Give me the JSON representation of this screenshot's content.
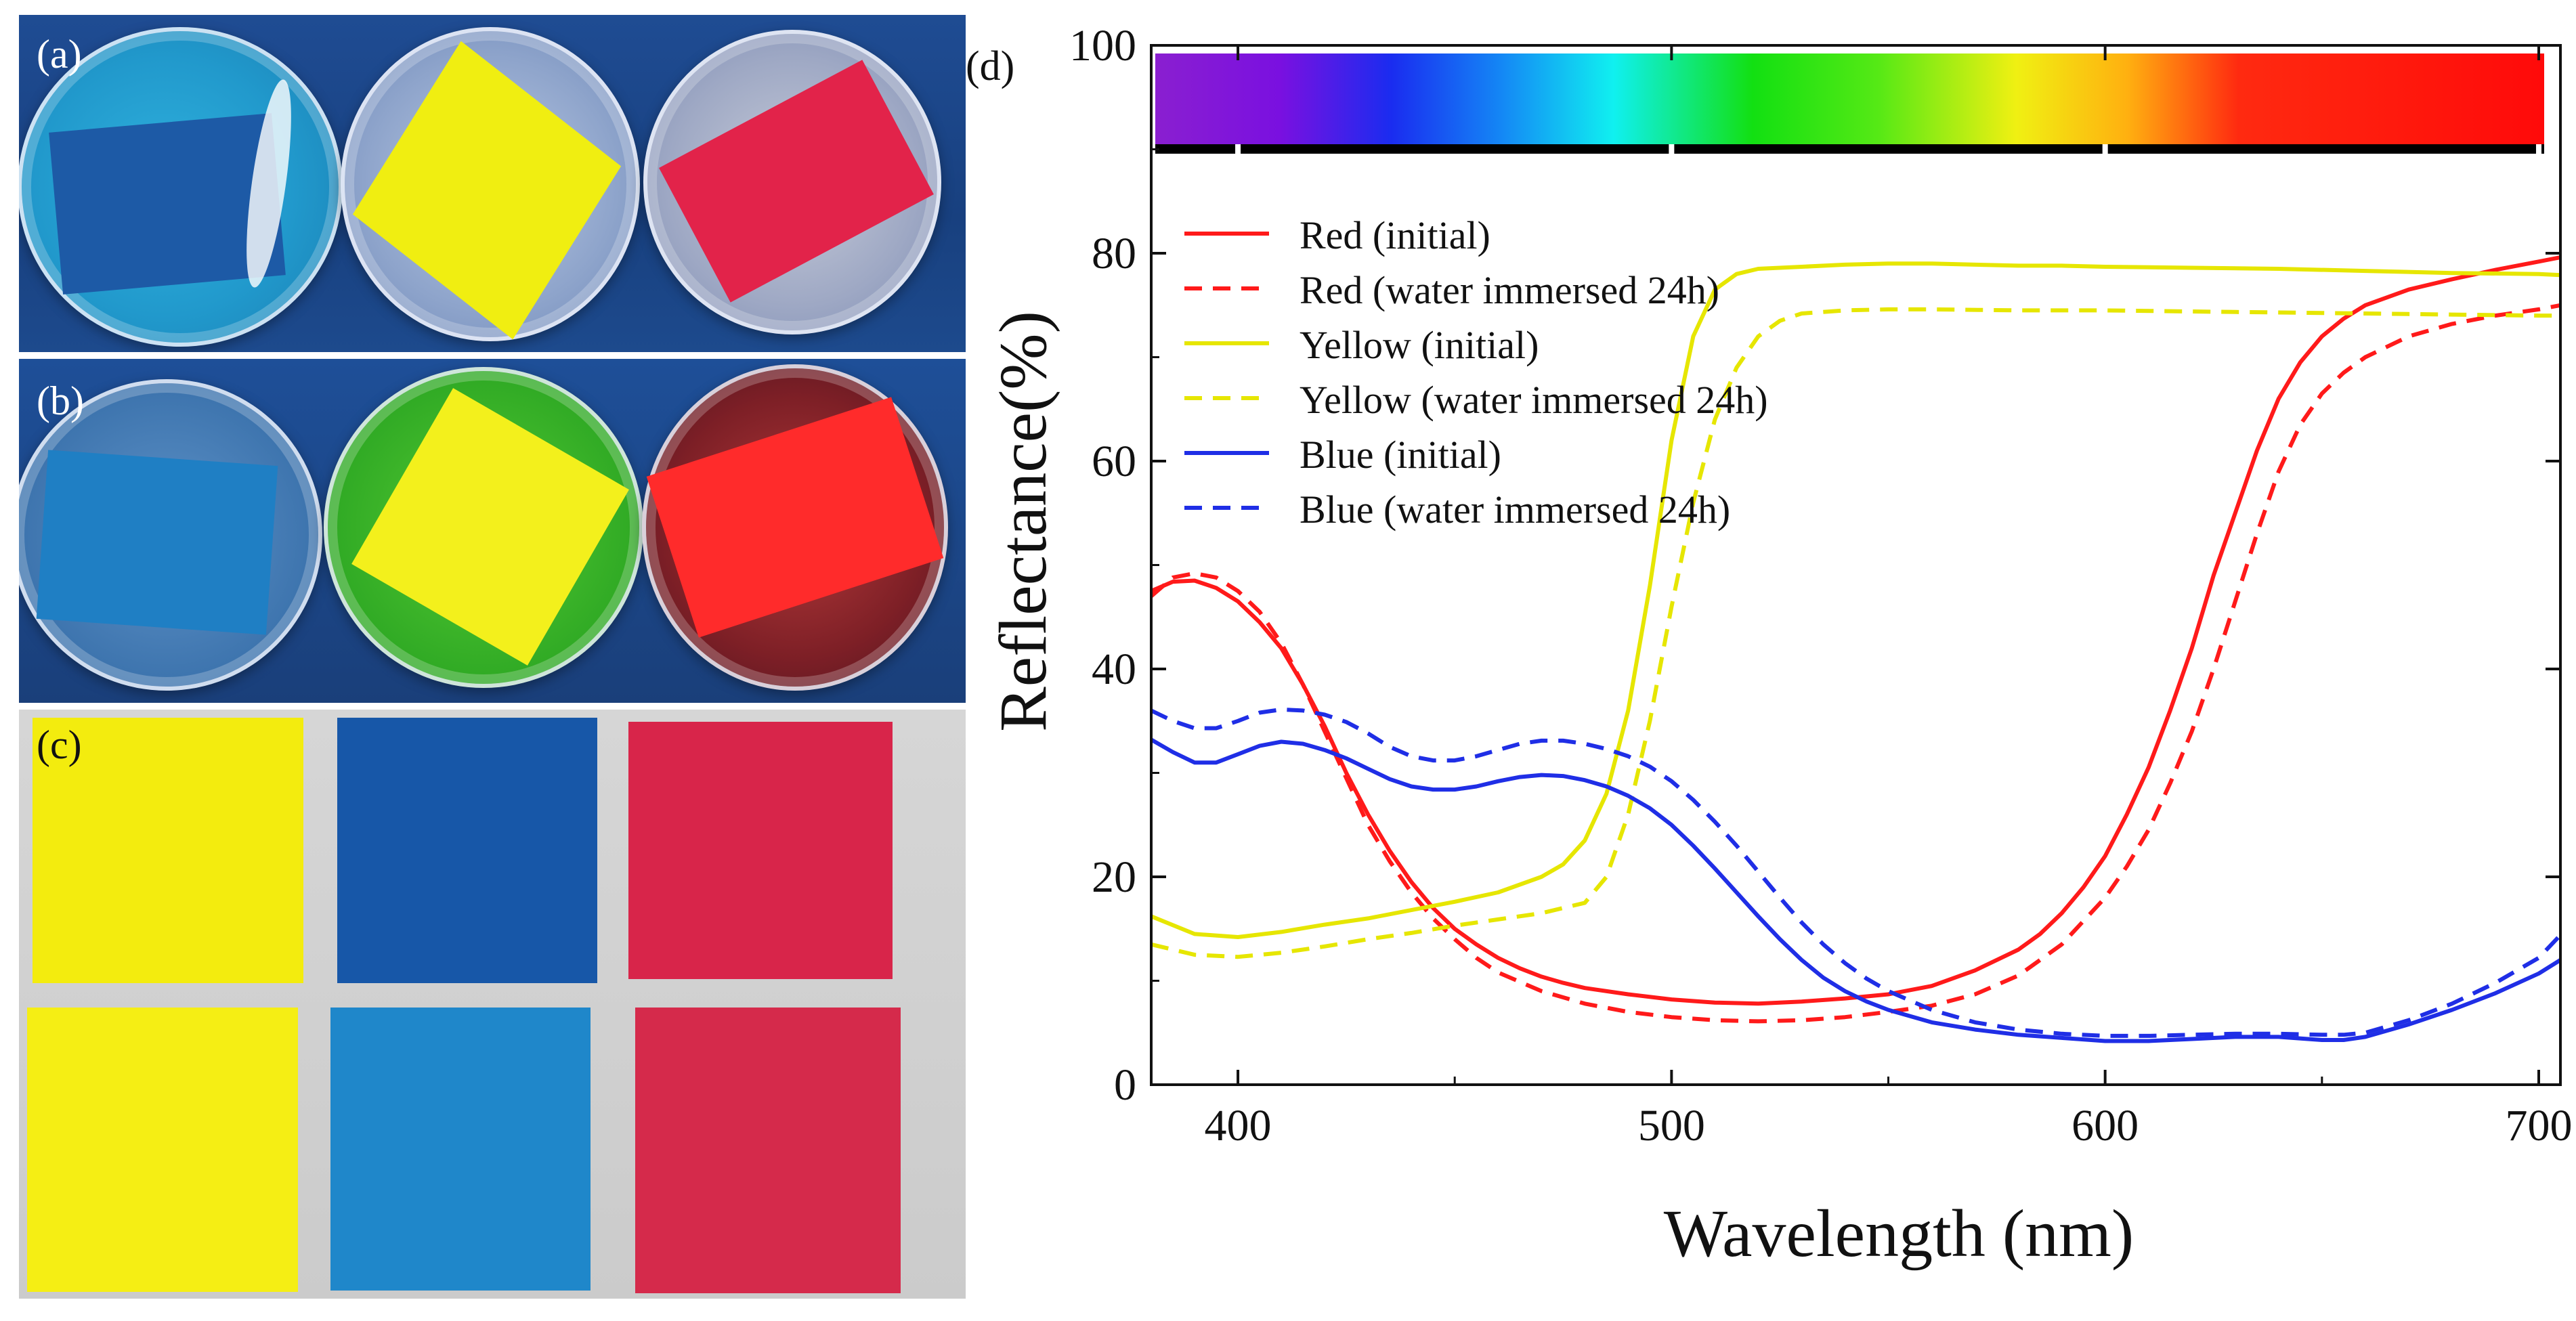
{
  "photos": {
    "label_a": "(a)",
    "label_b": "(b)",
    "label_c": "(c)"
  },
  "colors": {
    "red": "#ff1a1a",
    "yellow": "#e6e600",
    "blue": "#1f2ee6",
    "paper_yellow": "#f2ec10",
    "paper_blue": "#1756a8",
    "paper_red": "#d8254a"
  },
  "chart_data": {
    "type": "line",
    "panel_label": "(d)",
    "xlabel": "Wavelength (nm)",
    "ylabel": "Reflectance(%)",
    "xlim": [
      380,
      705
    ],
    "ylim": [
      0,
      100
    ],
    "xticks": [
      "400",
      "500",
      "600",
      "700"
    ],
    "yticks": [
      "0",
      "20",
      "40",
      "60",
      "80",
      "100"
    ],
    "legend_position": "top-left",
    "spectrum_bar": true,
    "series": [
      {
        "name": "Red (initial)",
        "color": "#ff1a1a",
        "dash": "solid",
        "x": [
          380,
          385,
          390,
          395,
          400,
          405,
          410,
          415,
          420,
          425,
          430,
          435,
          440,
          445,
          450,
          455,
          460,
          465,
          470,
          475,
          480,
          490,
          500,
          510,
          520,
          530,
          540,
          550,
          560,
          570,
          580,
          585,
          590,
          595,
          600,
          605,
          610,
          615,
          620,
          625,
          630,
          635,
          640,
          645,
          650,
          655,
          660,
          670,
          680,
          690,
          700,
          705
        ],
        "y": [
          47.5,
          48.4,
          48.5,
          47.8,
          46.5,
          44.5,
          42,
          38.5,
          34.5,
          30,
          26,
          22.5,
          19.5,
          17,
          15,
          13.5,
          12.2,
          11.2,
          10.4,
          9.8,
          9.3,
          8.7,
          8.2,
          7.9,
          7.8,
          8,
          8.3,
          8.7,
          9.5,
          11,
          13,
          14.5,
          16.5,
          19,
          22,
          26,
          30.5,
          36,
          42,
          49,
          55,
          61,
          66,
          69.5,
          72,
          73.7,
          75,
          76.5,
          77.5,
          78.4,
          79.2,
          79.6
        ]
      },
      {
        "name": "Red (water immersed 24h)",
        "color": "#ff1a1a",
        "dash": "dashed",
        "x": [
          380,
          385,
          390,
          395,
          400,
          405,
          410,
          415,
          420,
          425,
          430,
          435,
          440,
          445,
          450,
          455,
          460,
          470,
          480,
          490,
          500,
          510,
          520,
          530,
          540,
          550,
          560,
          570,
          580,
          590,
          600,
          605,
          610,
          615,
          620,
          625,
          630,
          635,
          640,
          645,
          650,
          655,
          660,
          670,
          680,
          690,
          700,
          705
        ],
        "y": [
          47,
          48.8,
          49.2,
          48.8,
          47.5,
          45.5,
          42.5,
          38.5,
          34,
          29.5,
          25,
          21.5,
          18.5,
          16,
          14,
          12.2,
          10.8,
          9,
          7.8,
          7,
          6.5,
          6.2,
          6.1,
          6.2,
          6.5,
          7,
          7.6,
          8.7,
          10.5,
          13.5,
          18,
          21,
          24.5,
          29,
          34,
          40,
          46.5,
          53,
          59,
          63.5,
          66.5,
          68.5,
          70,
          72,
          73.2,
          74,
          74.6,
          75
        ]
      },
      {
        "name": "Yellow (initial)",
        "color": "#e6e600",
        "dash": "solid",
        "x": [
          380,
          390,
          400,
          410,
          420,
          430,
          440,
          450,
          460,
          470,
          475,
          480,
          485,
          490,
          495,
          500,
          505,
          510,
          515,
          520,
          530,
          540,
          550,
          560,
          570,
          580,
          590,
          600,
          620,
          640,
          660,
          680,
          700,
          705
        ],
        "y": [
          16.2,
          14.5,
          14.2,
          14.7,
          15.4,
          16,
          16.8,
          17.6,
          18.5,
          20,
          21.2,
          23.5,
          28,
          36,
          48,
          62,
          72,
          76.5,
          78,
          78.5,
          78.7,
          78.9,
          79,
          79,
          78.9,
          78.8,
          78.8,
          78.7,
          78.6,
          78.5,
          78.3,
          78.1,
          78,
          77.9
        ]
      },
      {
        "name": "Yellow (water immersed 24h)",
        "color": "#e6e600",
        "dash": "dashed",
        "x": [
          380,
          390,
          400,
          410,
          420,
          430,
          440,
          450,
          460,
          470,
          480,
          485,
          490,
          495,
          500,
          505,
          510,
          515,
          520,
          525,
          530,
          540,
          550,
          560,
          580,
          600,
          620,
          640,
          660,
          680,
          700,
          705
        ],
        "y": [
          13.5,
          12.5,
          12.3,
          12.7,
          13.3,
          14,
          14.6,
          15.3,
          15.9,
          16.5,
          17.5,
          20,
          26,
          35,
          46,
          56,
          64,
          69,
          72,
          73.5,
          74.2,
          74.5,
          74.6,
          74.6,
          74.5,
          74.5,
          74.4,
          74.3,
          74.2,
          74.1,
          74,
          74
        ]
      },
      {
        "name": "Blue (initial)",
        "color": "#1f2ee6",
        "dash": "solid",
        "x": [
          380,
          385,
          390,
          395,
          400,
          405,
          410,
          415,
          420,
          425,
          430,
          435,
          440,
          445,
          450,
          455,
          460,
          465,
          470,
          475,
          480,
          485,
          490,
          495,
          500,
          505,
          510,
          515,
          520,
          525,
          530,
          535,
          540,
          545,
          550,
          560,
          570,
          580,
          590,
          600,
          610,
          620,
          630,
          640,
          650,
          655,
          660,
          670,
          680,
          690,
          700,
          705
        ],
        "y": [
          33.2,
          32,
          31,
          31,
          31.8,
          32.6,
          33,
          32.8,
          32.2,
          31.4,
          30.4,
          29.4,
          28.7,
          28.4,
          28.4,
          28.7,
          29.2,
          29.6,
          29.8,
          29.7,
          29.3,
          28.7,
          27.8,
          26.6,
          25,
          23,
          20.8,
          18.5,
          16.2,
          14,
          12,
          10.3,
          9,
          8,
          7.2,
          6,
          5.3,
          4.8,
          4.5,
          4.2,
          4.2,
          4.4,
          4.6,
          4.6,
          4.3,
          4.3,
          4.6,
          5.8,
          7.2,
          8.8,
          10.7,
          12
        ]
      },
      {
        "name": "Blue (water immersed 24h)",
        "color": "#1f2ee6",
        "dash": "dashed",
        "x": [
          380,
          385,
          390,
          395,
          400,
          405,
          410,
          415,
          420,
          425,
          430,
          435,
          440,
          445,
          450,
          455,
          460,
          465,
          470,
          475,
          480,
          485,
          490,
          495,
          500,
          505,
          510,
          515,
          520,
          525,
          530,
          535,
          540,
          545,
          550,
          560,
          570,
          580,
          590,
          600,
          610,
          620,
          630,
          640,
          650,
          655,
          660,
          670,
          680,
          690,
          700,
          705
        ],
        "y": [
          36,
          35,
          34.3,
          34.3,
          35,
          35.8,
          36.1,
          36,
          35.6,
          34.9,
          33.8,
          32.5,
          31.6,
          31.2,
          31.2,
          31.6,
          32.2,
          32.8,
          33.1,
          33.1,
          32.8,
          32.3,
          31.6,
          30.6,
          29.2,
          27.4,
          25.3,
          23,
          20.5,
          18,
          15.6,
          13.5,
          11.7,
          10.2,
          9,
          7.2,
          6,
          5.3,
          4.9,
          4.7,
          4.7,
          4.8,
          4.9,
          4.9,
          4.8,
          4.8,
          5,
          6.2,
          7.8,
          9.8,
          12.2,
          14.4
        ]
      }
    ]
  }
}
